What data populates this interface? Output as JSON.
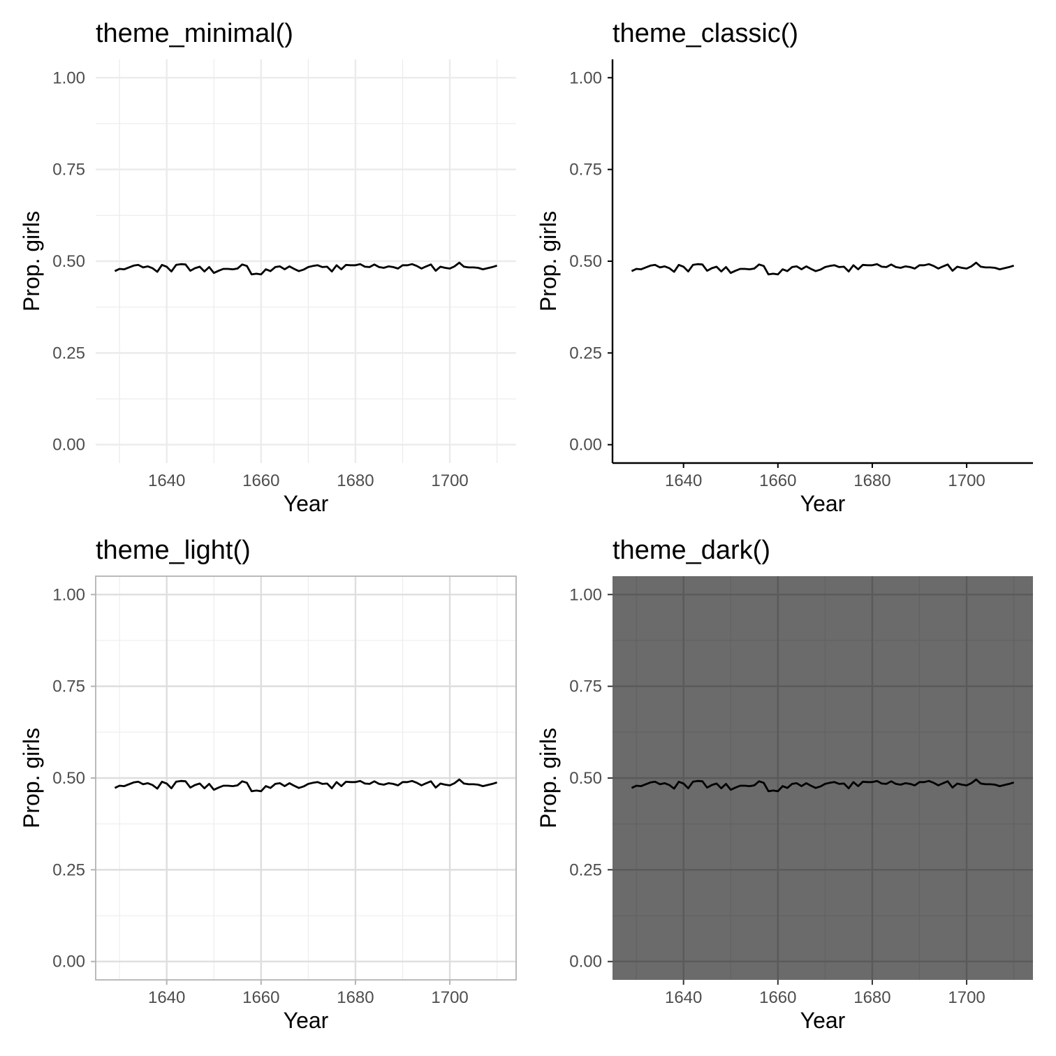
{
  "chart_data": [
    {
      "type": "line",
      "title": "theme_minimal()",
      "theme": "minimal",
      "xlabel": "Year",
      "ylabel": "Prop. girls",
      "xlim": [
        1624.95,
        1714.05
      ],
      "ylim": [
        0.0,
        1.0
      ],
      "xticks": [
        "1640",
        "1660",
        "1680",
        "1700"
      ],
      "yticks": [
        "0.00",
        "0.25",
        "0.50",
        "0.75",
        "1.00"
      ],
      "grid": true,
      "colors": {
        "background": "#ffffff",
        "panel": "#ffffff",
        "grid_major": "#ebebeb",
        "grid_minor": "#ebebeb",
        "line": "#000000",
        "axis_line": "none",
        "border": "none"
      }
    },
    {
      "type": "line",
      "title": "theme_classic()",
      "theme": "classic",
      "xlabel": "Year",
      "ylabel": "Prop. girls",
      "xlim": [
        1624.95,
        1714.05
      ],
      "ylim": [
        0.0,
        1.0
      ],
      "xticks": [
        "1640",
        "1660",
        "1680",
        "1700"
      ],
      "yticks": [
        "0.00",
        "0.25",
        "0.50",
        "0.75",
        "1.00"
      ],
      "grid": false,
      "colors": {
        "background": "#ffffff",
        "panel": "#ffffff",
        "grid_major": "none",
        "grid_minor": "none",
        "line": "#000000",
        "axis_line": "#000000",
        "border": "none"
      }
    },
    {
      "type": "line",
      "title": "theme_light()",
      "theme": "light",
      "xlabel": "Year",
      "ylabel": "Prop. girls",
      "xlim": [
        1624.95,
        1714.05
      ],
      "ylim": [
        0.0,
        1.0
      ],
      "xticks": [
        "1640",
        "1660",
        "1680",
        "1700"
      ],
      "yticks": [
        "0.00",
        "0.25",
        "0.50",
        "0.75",
        "1.00"
      ],
      "grid": true,
      "colors": {
        "background": "#ffffff",
        "panel": "#ffffff",
        "grid_major": "#dedede",
        "grid_minor": "#ededed",
        "line": "#000000",
        "axis_line": "none",
        "border": "#b3b3b3"
      }
    },
    {
      "type": "line",
      "title": "theme_dark()",
      "theme": "dark",
      "xlabel": "Year",
      "ylabel": "Prop. girls",
      "xlim": [
        1624.95,
        1714.05
      ],
      "ylim": [
        0.0,
        1.0
      ],
      "xticks": [
        "1640",
        "1660",
        "1680",
        "1700"
      ],
      "yticks": [
        "0.00",
        "0.25",
        "0.50",
        "0.75",
        "1.00"
      ],
      "grid": true,
      "colors": {
        "background": "#ffffff",
        "panel": "#6b6b6b",
        "grid_major": "#5a5a5a",
        "grid_minor": "#626262",
        "line": "#000000",
        "axis_line": "none",
        "border": "none"
      }
    }
  ],
  "series": {
    "name": "",
    "x_start": 1629,
    "x_end": 1710,
    "years": [
      1629,
      1630,
      1631,
      1632,
      1633,
      1634,
      1635,
      1636,
      1637,
      1638,
      1639,
      1640,
      1641,
      1642,
      1643,
      1644,
      1645,
      1646,
      1647,
      1648,
      1649,
      1650,
      1651,
      1652,
      1653,
      1654,
      1655,
      1656,
      1657,
      1658,
      1659,
      1660,
      1661,
      1662,
      1663,
      1664,
      1665,
      1666,
      1667,
      1668,
      1669,
      1670,
      1671,
      1672,
      1673,
      1674,
      1675,
      1676,
      1677,
      1678,
      1679,
      1680,
      1681,
      1682,
      1683,
      1684,
      1685,
      1686,
      1687,
      1688,
      1689,
      1690,
      1691,
      1692,
      1693,
      1694,
      1695,
      1696,
      1697,
      1698,
      1699,
      1700,
      1701,
      1702,
      1703,
      1704,
      1705,
      1706,
      1707,
      1708,
      1709,
      1710
    ],
    "values": [
      0.473,
      0.479,
      0.478,
      0.483,
      0.488,
      0.49,
      0.483,
      0.486,
      0.481,
      0.471,
      0.49,
      0.485,
      0.472,
      0.49,
      0.492,
      0.491,
      0.474,
      0.481,
      0.485,
      0.472,
      0.484,
      0.468,
      0.474,
      0.479,
      0.479,
      0.478,
      0.48,
      0.491,
      0.487,
      0.464,
      0.466,
      0.464,
      0.478,
      0.473,
      0.484,
      0.486,
      0.478,
      0.486,
      0.479,
      0.473,
      0.477,
      0.484,
      0.487,
      0.489,
      0.484,
      0.485,
      0.472,
      0.489,
      0.478,
      0.49,
      0.489,
      0.489,
      0.492,
      0.485,
      0.484,
      0.491,
      0.484,
      0.482,
      0.486,
      0.484,
      0.48,
      0.489,
      0.489,
      0.492,
      0.487,
      0.48,
      0.486,
      0.491,
      0.474,
      0.485,
      0.482,
      0.48,
      0.486,
      0.496,
      0.485,
      0.483,
      0.483,
      0.482,
      0.478,
      0.481,
      0.484,
      0.488
    ]
  }
}
